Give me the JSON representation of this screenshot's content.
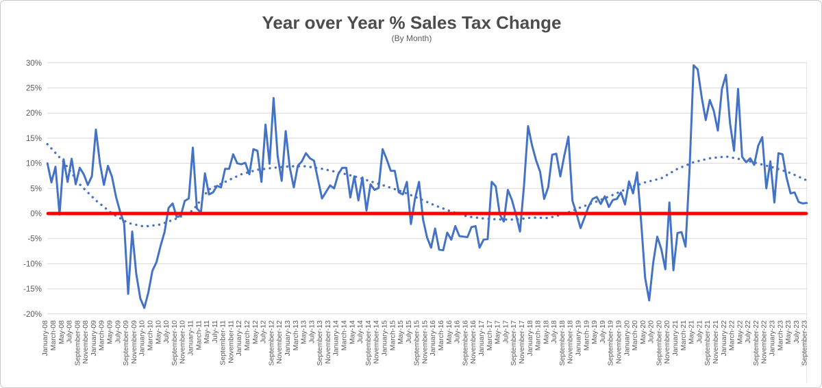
{
  "chart_data": {
    "type": "line",
    "title": "Year over Year % Sales Tax Change",
    "subtitle": "(By Month)",
    "unit": "%",
    "ylim": [
      -20,
      30
    ],
    "grid": "horizontal",
    "legend": "none",
    "yticks": [
      {
        "value": 30,
        "label": "30%"
      },
      {
        "value": 25,
        "label": "25%"
      },
      {
        "value": 20,
        "label": "20%"
      },
      {
        "value": 15,
        "label": "15%"
      },
      {
        "value": 10,
        "label": "10%"
      },
      {
        "value": 5,
        "label": "5%"
      },
      {
        "value": 0,
        "label": "0%"
      },
      {
        "value": -5,
        "label": "-5%"
      },
      {
        "value": -10,
        "label": "-10%"
      },
      {
        "value": -15,
        "label": "-15%"
      },
      {
        "value": -20,
        "label": "-20%"
      }
    ],
    "x_label_step_months": 2,
    "x_labels": [
      "January-08",
      "March-08",
      "May-08",
      "July-08",
      "September-08",
      "November-08",
      "January-09",
      "March-09",
      "May-09",
      "July-09",
      "September-09",
      "November-09",
      "January-10",
      "March-10",
      "May-10",
      "July-10",
      "September-10",
      "November-10",
      "January-11",
      "March-11",
      "May-11",
      "July-11",
      "September-11",
      "November-11",
      "January-12",
      "March-12",
      "May-12",
      "July-12",
      "September-12",
      "November-12",
      "January-13",
      "March-13",
      "May-13",
      "July-13",
      "September-13",
      "November-13",
      "January-14",
      "March-14",
      "May-14",
      "July-14",
      "September-14",
      "November-14",
      "January-15",
      "March-15",
      "May-15",
      "July-15",
      "September-15",
      "November-15",
      "January-16",
      "March-16",
      "May-16",
      "July-16",
      "September-16",
      "November-16",
      "January-17",
      "March-17",
      "May-17",
      "July-17",
      "September-17",
      "November-17",
      "January-18",
      "March-18",
      "May-18",
      "July-18",
      "September-18",
      "November-18",
      "January-19",
      "March-19",
      "May-19",
      "July-19",
      "September-19",
      "November-19",
      "January-20",
      "March-20",
      "May-20",
      "July-20",
      "September-20",
      "November-20",
      "January-21",
      "March-21",
      "May-21",
      "July-21",
      "September-21",
      "November-21",
      "January-22",
      "March-22",
      "May-22",
      "July-22",
      "September-22",
      "November-22",
      "January-23",
      "March-23",
      "May-23",
      "July-23",
      "September-23"
    ],
    "series": [
      {
        "name": "YoY % change (monthly)",
        "style": "solid",
        "color": "#4472C4",
        "start_month": "January-08",
        "end_month": "September-23",
        "values": [
          10.0,
          6.2,
          9.3,
          -0.2,
          10.8,
          6.3,
          10.9,
          5.8,
          9.1,
          7.8,
          5.7,
          7.4,
          16.7,
          10.0,
          5.7,
          9.5,
          7.3,
          3.3,
          0.4,
          -2.0,
          -16.0,
          -3.6,
          -12.0,
          -16.9,
          -18.8,
          -15.7,
          -11.4,
          -9.7,
          -6.5,
          -3.7,
          1.1,
          2.0,
          -0.7,
          -0.5,
          2.5,
          3.0,
          13.1,
          1.0,
          0.2,
          8.0,
          3.8,
          4.2,
          5.5,
          5.2,
          8.9,
          8.9,
          11.8,
          10.0,
          9.8,
          10.1,
          7.8,
          12.8,
          12.5,
          6.3,
          17.7,
          9.9,
          23.0,
          11.5,
          6.5,
          16.4,
          9.2,
          5.2,
          9.5,
          10.4,
          12.0,
          11.0,
          10.5,
          6.7,
          3.0,
          4.3,
          5.6,
          5.0,
          7.8,
          9.1,
          9.1,
          3.2,
          7.4,
          2.6,
          7.2,
          0.6,
          5.8,
          4.7,
          5.1,
          12.8,
          10.8,
          8.5,
          8.5,
          4.2,
          3.8,
          6.3,
          -2.1,
          2.9,
          6.3,
          -1.2,
          -4.8,
          -6.8,
          -3.0,
          -7.2,
          -7.3,
          -3.8,
          -5.2,
          -2.5,
          -4.5,
          -4.6,
          -4.7,
          -2.7,
          -2.5,
          -6.8,
          -5.2,
          -5.1,
          6.3,
          5.4,
          -0.2,
          -1.6,
          4.7,
          2.7,
          -0.2,
          -3.6,
          5.6,
          17.4,
          13.5,
          10.6,
          8.3,
          2.9,
          5.2,
          11.7,
          11.9,
          7.4,
          11.6,
          15.3,
          2.5,
          0.0,
          -2.9,
          -0.8,
          1.4,
          2.9,
          3.3,
          1.9,
          3.4,
          1.3,
          2.7,
          2.9,
          4.2,
          1.8,
          6.4,
          4.0,
          8.2,
          -1.7,
          -12.8,
          -17.3,
          -9.8,
          -4.6,
          -7.1,
          -11.1,
          2.2,
          -11.3,
          -3.9,
          -3.7,
          -6.6,
          8.9,
          29.5,
          28.7,
          23.1,
          18.6,
          22.6,
          20.4,
          16.5,
          24.8,
          27.6,
          18.0,
          12.5,
          24.8,
          11.3,
          10.2,
          11.0,
          9.7,
          13.5,
          15.2,
          5.0,
          10.4,
          2.2,
          12.0,
          11.8,
          7.2,
          4.0,
          4.2,
          2.3,
          2.0,
          2.1
        ]
      },
      {
        "name": "Trend (dotted)",
        "style": "dotted",
        "color": "#4472C4",
        "point_step_months": 4,
        "values": [
          13.8,
          10.3,
          5.8,
          2.6,
          0.0,
          -1.9,
          -2.6,
          -2.2,
          -1.0,
          0.6,
          4.8,
          6.3,
          7.8,
          8.7,
          9.1,
          9.4,
          9.4,
          8.9,
          8.2,
          7.4,
          6.4,
          5.4,
          4.3,
          3.0,
          1.6,
          0.4,
          -0.6,
          -1.0,
          -1.2,
          -1.2,
          -0.8,
          -0.9,
          -0.1,
          1.2,
          2.4,
          3.7,
          5.1,
          6.2,
          7.0,
          8.9,
          10.2,
          11.0,
          11.35,
          10.75,
          9.95,
          9.1,
          8.05,
          6.6
        ]
      },
      {
        "name": "Zero baseline",
        "style": "solid",
        "color": "#FF0000",
        "value": 0
      }
    ],
    "colors": {
      "line": "#4472C4",
      "zero_line": "#FF0000",
      "gridline": "#d9d9d9",
      "axis_text": "#595959",
      "title_text": "#4d4d4d",
      "frame_border": "#c9c9c9"
    }
  }
}
